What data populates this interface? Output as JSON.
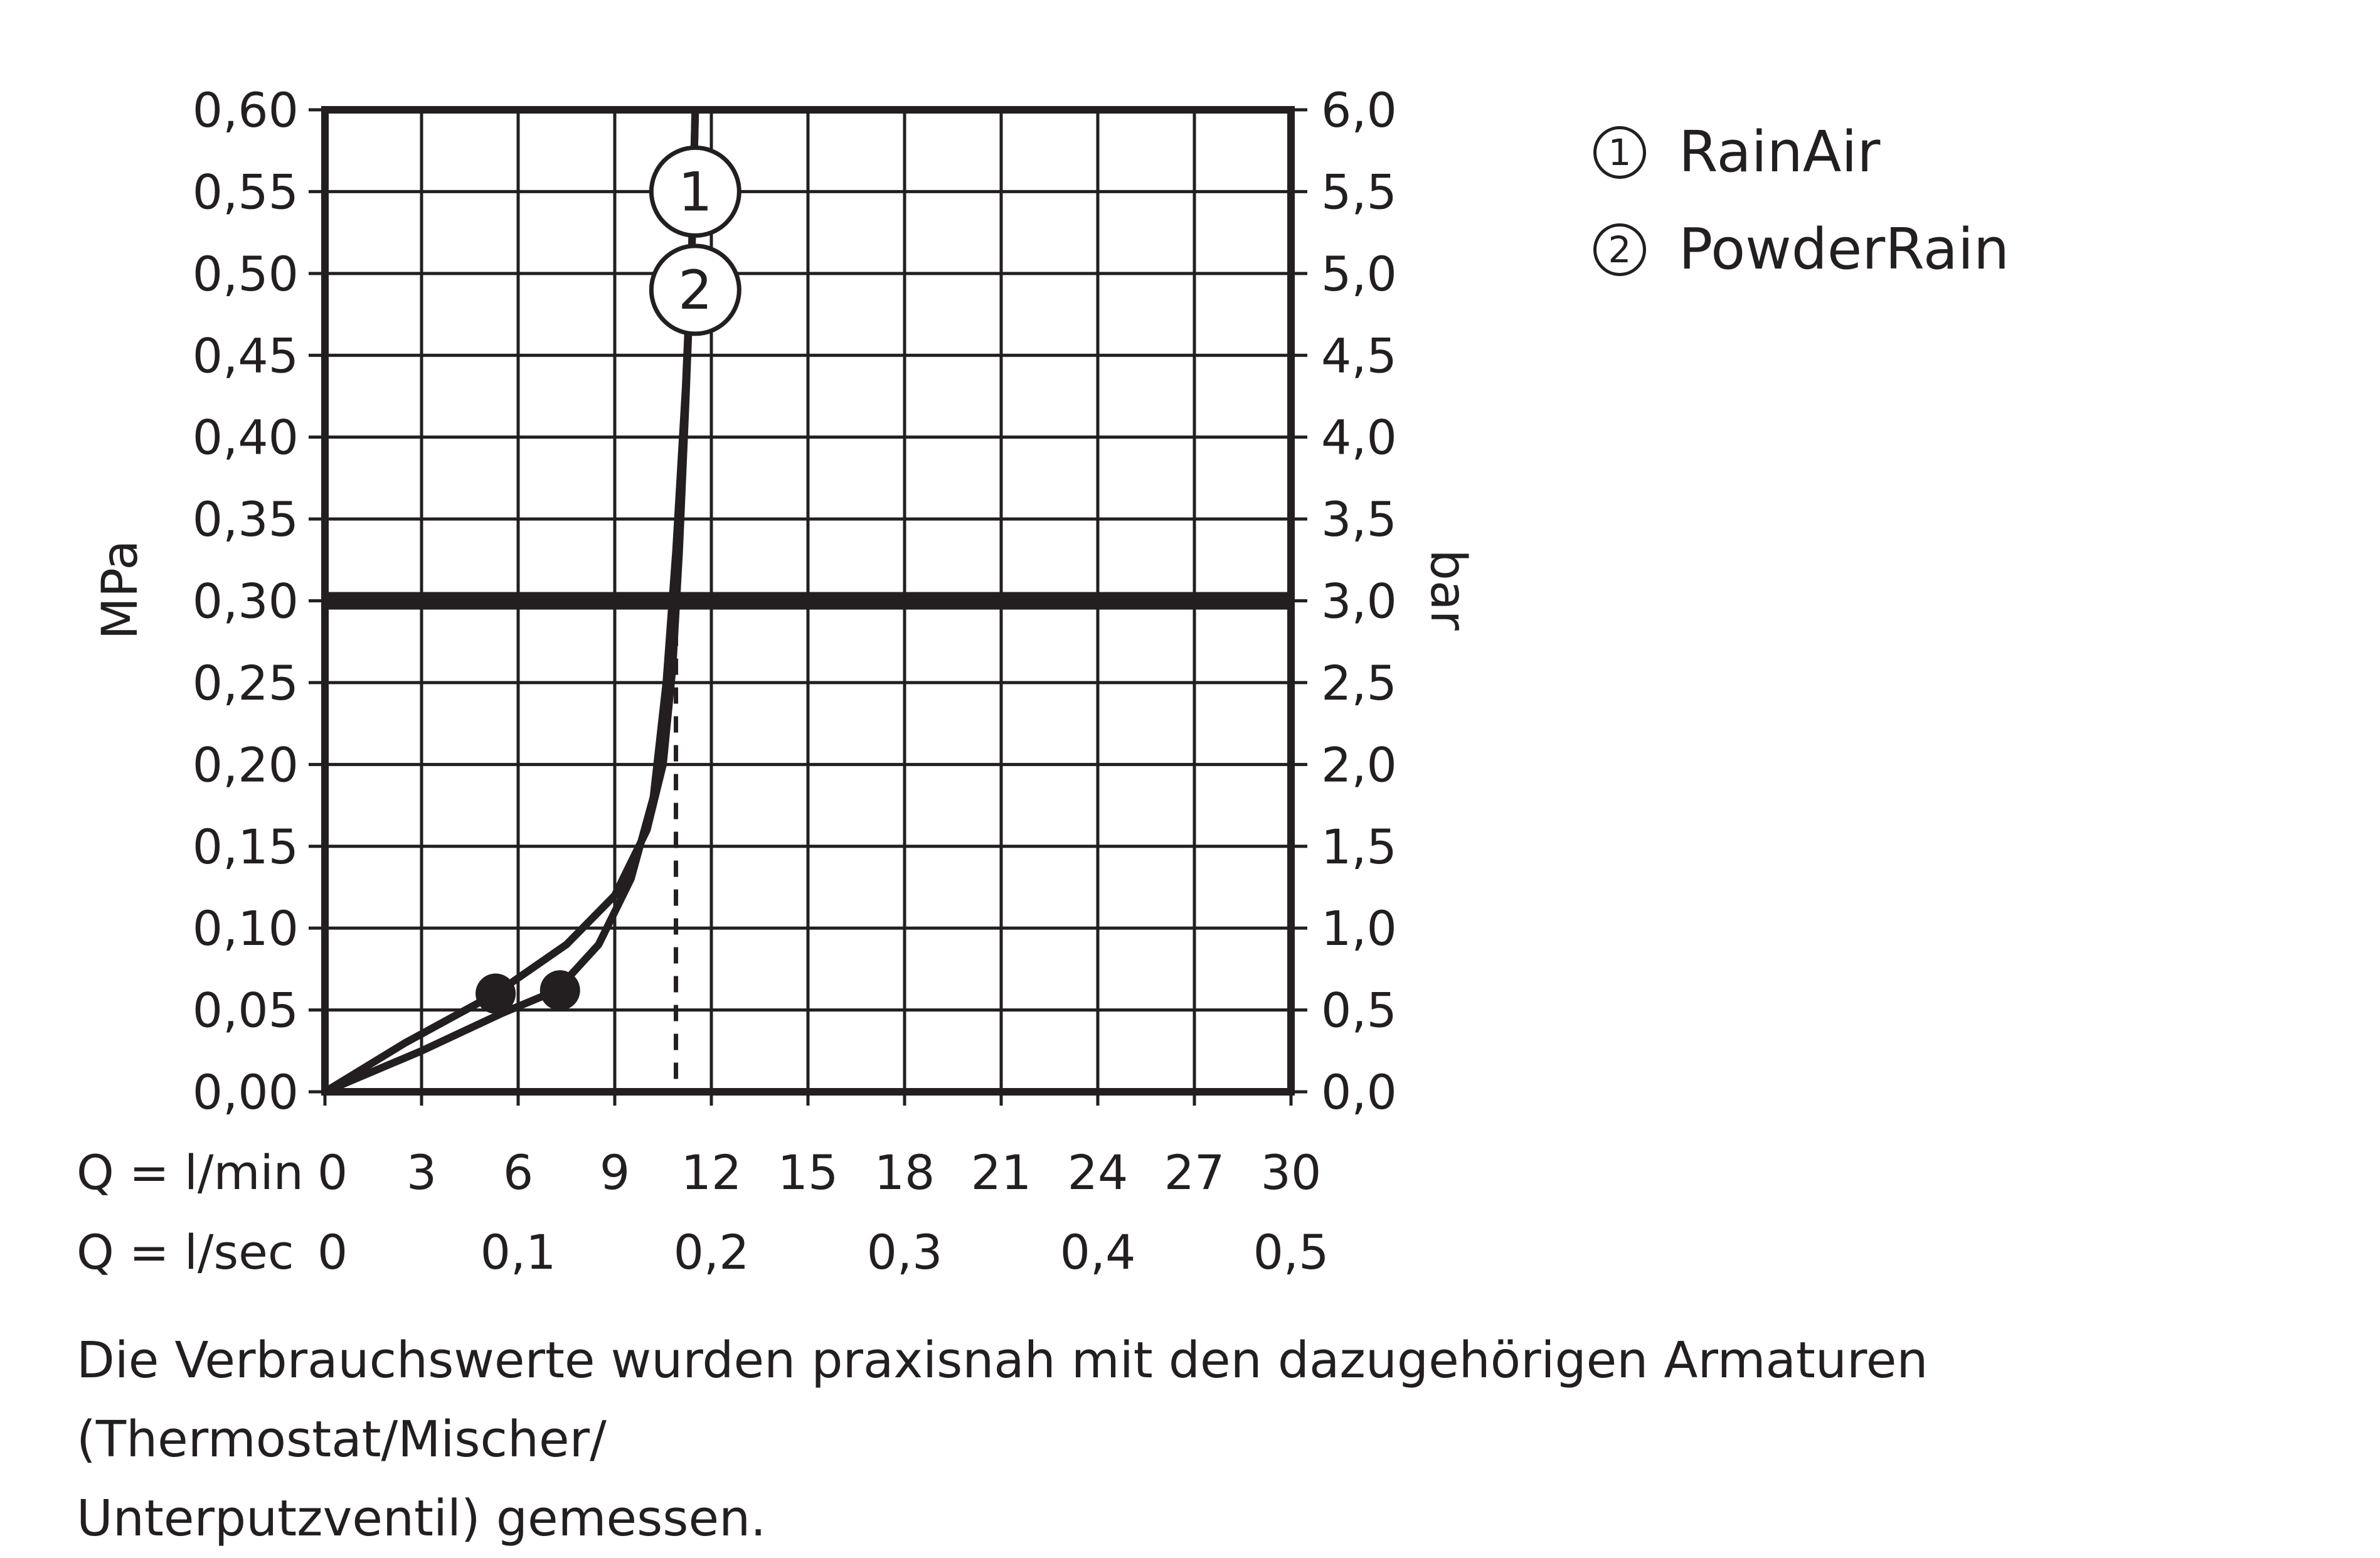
{
  "chart_data": {
    "type": "line",
    "yleft_label": "MPa",
    "yright_label": "bar",
    "yleft_ticks": [
      "0,00",
      "0,05",
      "0,10",
      "0,15",
      "0,20",
      "0,25",
      "0,30",
      "0,35",
      "0,40",
      "0,45",
      "0,50",
      "0,55",
      "0,60"
    ],
    "yright_ticks": [
      "0,0",
      "0,5",
      "1,0",
      "1,5",
      "2,0",
      "2,5",
      "3,0",
      "3,5",
      "4,0",
      "4,5",
      "5,0",
      "5,5",
      "6,0"
    ],
    "ylim": [
      0,
      0.6
    ],
    "xlim": [
      0,
      30
    ],
    "x_row1_label": "Q = l/min",
    "x_row1_ticks": [
      "0",
      "3",
      "6",
      "9",
      "12",
      "15",
      "18",
      "21",
      "24",
      "27",
      "30"
    ],
    "x_row2_label": "Q = l/sec",
    "x_row2_ticks": [
      "0",
      "0,1",
      "0,2",
      "0,3",
      "0,4",
      "0,5"
    ],
    "grid": true,
    "reference_line": {
      "y": 0.3
    },
    "reference_dashed_x": 10.9,
    "series": [
      {
        "name": "RainAir",
        "marker": "1",
        "x": [
          0,
          2.5,
          5.3,
          7.5,
          9.0,
          10.0,
          10.5,
          10.8,
          11.0,
          11.2,
          11.4,
          11.5
        ],
        "y": [
          0,
          0.03,
          0.06,
          0.09,
          0.12,
          0.16,
          0.2,
          0.26,
          0.33,
          0.42,
          0.52,
          0.6
        ],
        "dot": {
          "x": 5.3,
          "y": 0.06
        }
      },
      {
        "name": "PowderRain",
        "marker": "2",
        "x": [
          0,
          3.0,
          5.5,
          7.2,
          8.5,
          9.5,
          10.2,
          10.6,
          10.9,
          11.2,
          11.4,
          11.5
        ],
        "y": [
          0,
          0.025,
          0.048,
          0.062,
          0.09,
          0.13,
          0.18,
          0.25,
          0.33,
          0.43,
          0.52,
          0.6
        ],
        "dot": {
          "x": 7.3,
          "y": 0.062
        }
      }
    ]
  },
  "legend": [
    {
      "num": "1",
      "label": "RainAir"
    },
    {
      "num": "2",
      "label": "PowderRain"
    }
  ],
  "footnote": {
    "line1": "Die Verbrauchswerte wurden praxisnah mit den dazugehörigen Armaturen (Thermostat/Mischer/",
    "line2": "Unterputzventil) gemessen."
  },
  "colors": {
    "ink": "#231f20",
    "background": "#ffffff"
  }
}
